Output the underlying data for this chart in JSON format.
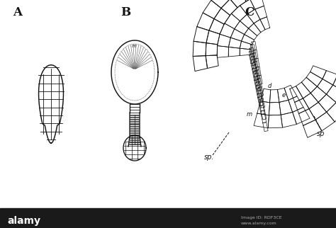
{
  "background_color": "#ffffff",
  "label_A": "A",
  "label_B": "B",
  "label_C": "C",
  "label_sp1": "sp.",
  "label_sp2": "sp",
  "label_m_B": "m",
  "label_m_C": "m",
  "label_d": "d",
  "label_e": "e",
  "line_color": "#111111",
  "fig_width": 4.74,
  "fig_height": 3.22,
  "dpi": 100,
  "watermark_text": "alamy",
  "wm_img_id": "Image ID: RDF3CE",
  "wm_url": "www.alamy.com"
}
